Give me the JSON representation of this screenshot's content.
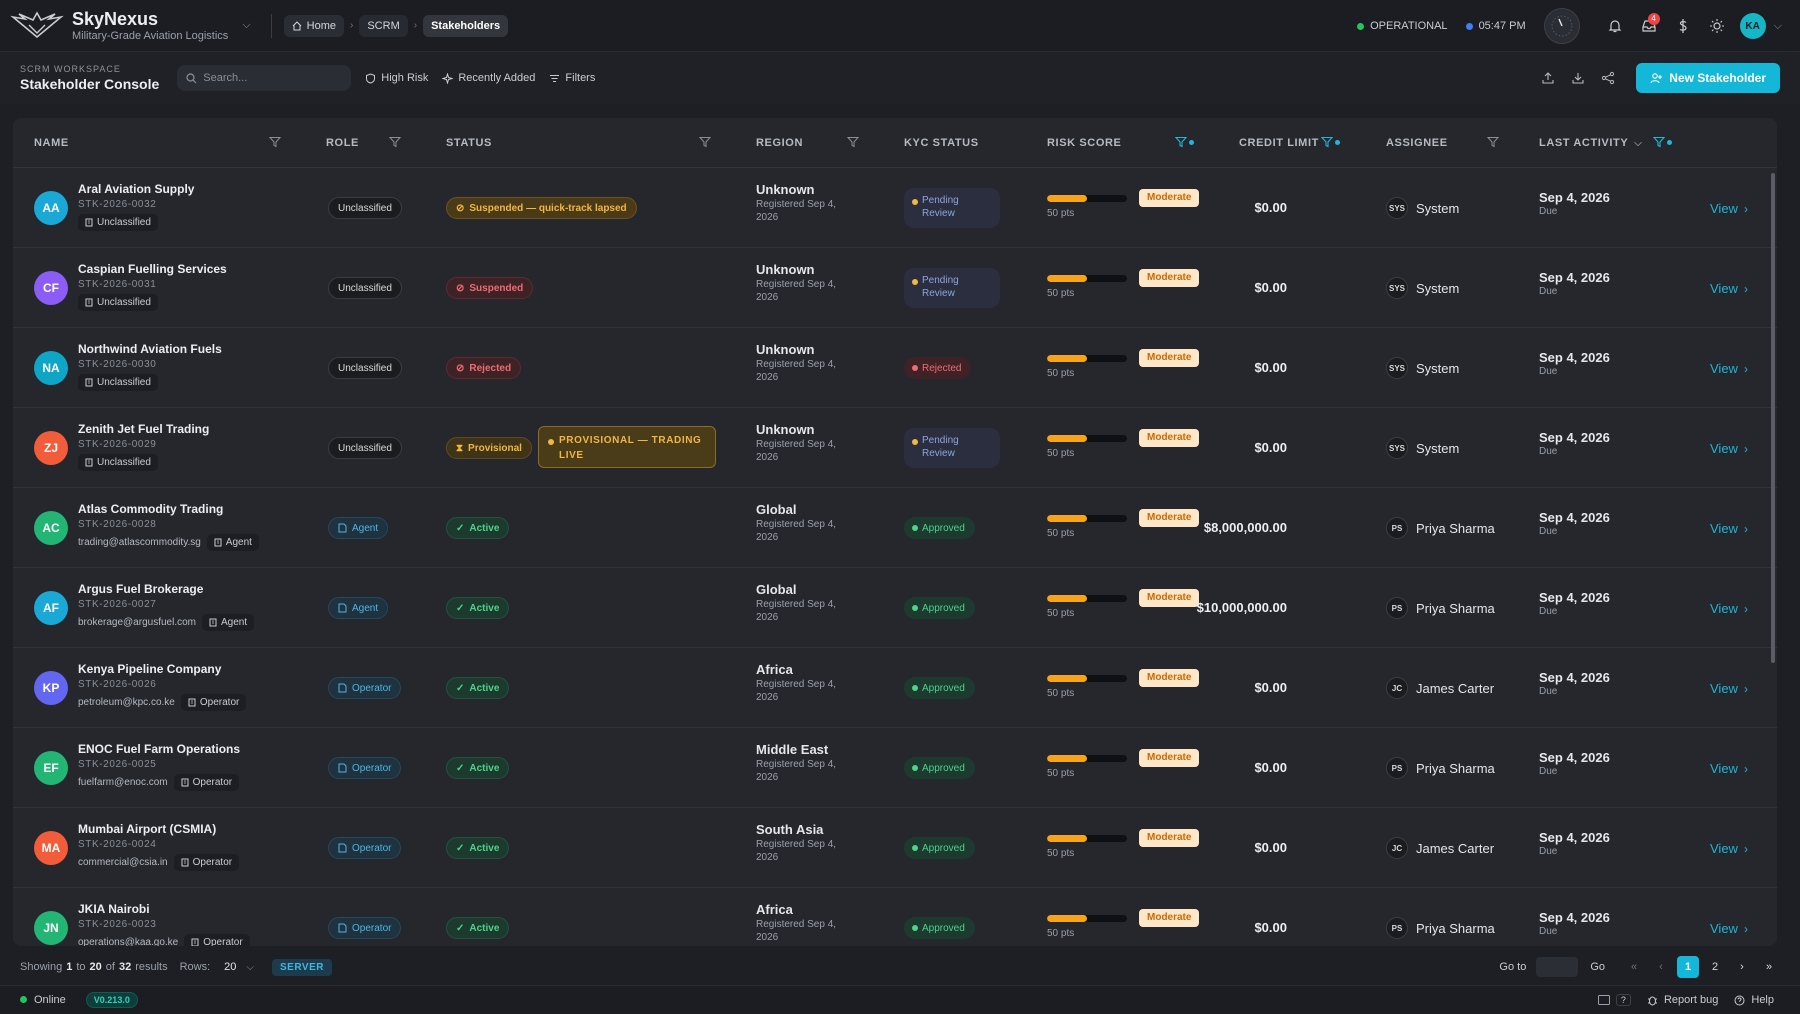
{
  "app": {
    "title": "SkyNexus",
    "subtitle": "Military-Grade Aviation Logistics"
  },
  "breadcrumb": [
    "Home",
    "SCRM",
    "Stakeholders"
  ],
  "topbar": {
    "status": "OPERATIONAL",
    "time": "05:47 PM",
    "notif_count": "4",
    "user_initials": "KA"
  },
  "workspace": {
    "label": "SCRM WORKSPACE",
    "title": "Stakeholder Console"
  },
  "search": {
    "placeholder": "Search..."
  },
  "filters": {
    "high_risk": "High Risk",
    "recently_added": "Recently Added",
    "filters": "Filters"
  },
  "new_button": "New Stakeholder",
  "columns": [
    "NAME",
    "ROLE",
    "STATUS",
    "REGION",
    "KYC STATUS",
    "RISK SCORE",
    "CREDIT LIMIT",
    "ASSIGNEE",
    "LAST ACTIVITY"
  ],
  "rows": [
    {
      "initials": "AA",
      "color": "#1aa8d6",
      "name": "Aral Aviation Supply",
      "id": "STK-2026-0032",
      "email": "",
      "tag": "Unclassified",
      "role": "Unclassified",
      "role_type": "plain",
      "status": "Suspended — quick-track lapsed",
      "status_type": "sus",
      "live": "",
      "region": "Unknown",
      "registered": "Registered Sep 4, 2026",
      "kyc": "Pending Review",
      "kyc_type": "pen",
      "risk": "Moderate",
      "risk_level": 0.5,
      "pts": "50 pts",
      "credit": "$0.00",
      "assignee_initials": "SYS",
      "assignee": "System",
      "last": "Sep 4, 2026",
      "due": "Due",
      "view": "View"
    },
    {
      "initials": "CF",
      "color": "#8b5cf6",
      "name": "Caspian Fuelling Services",
      "id": "STK-2026-0031",
      "email": "",
      "tag": "Unclassified",
      "role": "Unclassified",
      "role_type": "plain",
      "status": "Suspended",
      "status_type": "rej",
      "live": "",
      "region": "Unknown",
      "registered": "Registered Sep 4, 2026",
      "kyc": "Pending Review",
      "kyc_type": "pen",
      "risk": "Moderate",
      "risk_level": 0.5,
      "pts": "50 pts",
      "credit": "$0.00",
      "assignee_initials": "SYS",
      "assignee": "System",
      "last": "Sep 4, 2026",
      "due": "Due",
      "view": "View"
    },
    {
      "initials": "NA",
      "color": "#0ea5c6",
      "name": "Northwind Aviation Fuels",
      "id": "STK-2026-0030",
      "email": "",
      "tag": "Unclassified",
      "role": "Unclassified",
      "role_type": "plain",
      "status": "Rejected",
      "status_type": "rej",
      "live": "",
      "region": "Unknown",
      "registered": "Registered Sep 4, 2026",
      "kyc": "Rejected",
      "kyc_type": "rej",
      "risk": "Moderate",
      "risk_level": 0.5,
      "pts": "50 pts",
      "credit": "$0.00",
      "assignee_initials": "SYS",
      "assignee": "System",
      "last": "Sep 4, 2026",
      "due": "Due",
      "view": "View"
    },
    {
      "initials": "ZJ",
      "color": "#f25c3b",
      "name": "Zenith Jet Fuel Trading",
      "id": "STK-2026-0029",
      "email": "",
      "tag": "Unclassified",
      "role": "Unclassified",
      "role_type": "plain",
      "status": "Provisional",
      "status_type": "pro",
      "live": "PROVISIONAL — TRADING LIVE",
      "region": "Unknown",
      "registered": "Registered Sep 4, 2026",
      "kyc": "Pending Review",
      "kyc_type": "pen",
      "risk": "Moderate",
      "risk_level": 0.5,
      "pts": "50 pts",
      "credit": "$0.00",
      "assignee_initials": "SYS",
      "assignee": "System",
      "last": "Sep 4, 2026",
      "due": "Due",
      "view": "View"
    },
    {
      "initials": "AC",
      "color": "#22b573",
      "name": "Atlas Commodity Trading",
      "id": "STK-2026-0028",
      "email": "trading@atlascommodity.sg",
      "tag": "Agent",
      "role": "Agent",
      "role_type": "blue",
      "status": "Active",
      "status_type": "act",
      "live": "",
      "region": "Global",
      "registered": "Registered Sep 4, 2026",
      "kyc": "Approved",
      "kyc_type": "app",
      "risk": "Moderate",
      "risk_level": 0.5,
      "pts": "50 pts",
      "credit": "$8,000,000.00",
      "assignee_initials": "PS",
      "assignee": "Priya Sharma",
      "last": "Sep 4, 2026",
      "due": "Due",
      "view": "View"
    },
    {
      "initials": "AF",
      "color": "#1aa8d6",
      "name": "Argus Fuel Brokerage",
      "id": "STK-2026-0027",
      "email": "brokerage@argusfuel.com",
      "tag": "Agent",
      "role": "Agent",
      "role_type": "blue",
      "status": "Active",
      "status_type": "act",
      "live": "",
      "region": "Global",
      "registered": "Registered Sep 4, 2026",
      "kyc": "Approved",
      "kyc_type": "app",
      "risk": "Moderate",
      "risk_level": 0.5,
      "pts": "50 pts",
      "credit": "$10,000,000.00",
      "assignee_initials": "PS",
      "assignee": "Priya Sharma",
      "last": "Sep 4, 2026",
      "due": "Due",
      "view": "View"
    },
    {
      "initials": "KP",
      "color": "#6366f1",
      "name": "Kenya Pipeline Company",
      "id": "STK-2026-0026",
      "email": "petroleum@kpc.co.ke",
      "tag": "Operator",
      "role": "Operator",
      "role_type": "blue",
      "status": "Active",
      "status_type": "act",
      "live": "",
      "region": "Africa",
      "registered": "Registered Sep 4, 2026",
      "kyc": "Approved",
      "kyc_type": "app",
      "risk": "Moderate",
      "risk_level": 0.5,
      "pts": "50 pts",
      "credit": "$0.00",
      "assignee_initials": "JC",
      "assignee": "James Carter",
      "last": "Sep 4, 2026",
      "due": "Due",
      "view": "View"
    },
    {
      "initials": "EF",
      "color": "#22b573",
      "name": "ENOC Fuel Farm Operations",
      "id": "STK-2026-0025",
      "email": "fuelfarm@enoc.com",
      "tag": "Operator",
      "role": "Operator",
      "role_type": "blue",
      "status": "Active",
      "status_type": "act",
      "live": "",
      "region": "Middle East",
      "registered": "Registered Sep 4, 2026",
      "kyc": "Approved",
      "kyc_type": "app",
      "risk": "Moderate",
      "risk_level": 0.5,
      "pts": "50 pts",
      "credit": "$0.00",
      "assignee_initials": "PS",
      "assignee": "Priya Sharma",
      "last": "Sep 4, 2026",
      "due": "Due",
      "view": "View"
    },
    {
      "initials": "MA",
      "color": "#f25c3b",
      "name": "Mumbai Airport (CSMIA)",
      "id": "STK-2026-0024",
      "email": "commercial@csia.in",
      "tag": "Operator",
      "role": "Operator",
      "role_type": "blue",
      "status": "Active",
      "status_type": "act",
      "live": "",
      "region": "South Asia",
      "registered": "Registered Sep 4, 2026",
      "kyc": "Approved",
      "kyc_type": "app",
      "risk": "Moderate",
      "risk_level": 0.5,
      "pts": "50 pts",
      "credit": "$0.00",
      "assignee_initials": "JC",
      "assignee": "James Carter",
      "last": "Sep 4, 2026",
      "due": "Due",
      "view": "View"
    },
    {
      "initials": "JN",
      "color": "#22b573",
      "name": "JKIA Nairobi",
      "id": "STK-2026-0023",
      "email": "operations@kaa.go.ke",
      "tag": "Operator",
      "role": "Operator",
      "role_type": "blue",
      "status": "Active",
      "status_type": "act",
      "live": "",
      "region": "Africa",
      "registered": "Registered Sep 4, 2026",
      "kyc": "Approved",
      "kyc_type": "app",
      "risk": "Moderate",
      "risk_level": 0.5,
      "pts": "50 pts",
      "credit": "$0.00",
      "assignee_initials": "PS",
      "assignee": "Priya Sharma",
      "last": "Sep 4, 2026",
      "due": "Due",
      "view": "View"
    }
  ],
  "footer": {
    "showing": "Showing",
    "from": "1",
    "to_word": "to",
    "to": "20",
    "of_word": "of",
    "total": "32",
    "results": "results",
    "rows_label": "Rows:",
    "rows_value": "20",
    "server": "SERVER",
    "goto": "Go to",
    "go": "Go",
    "pages": [
      "1",
      "2"
    ]
  },
  "statusbar": {
    "online": "Online",
    "version": "V0.213.0",
    "shortcut": "?",
    "report": "Report bug",
    "help": "Help"
  }
}
